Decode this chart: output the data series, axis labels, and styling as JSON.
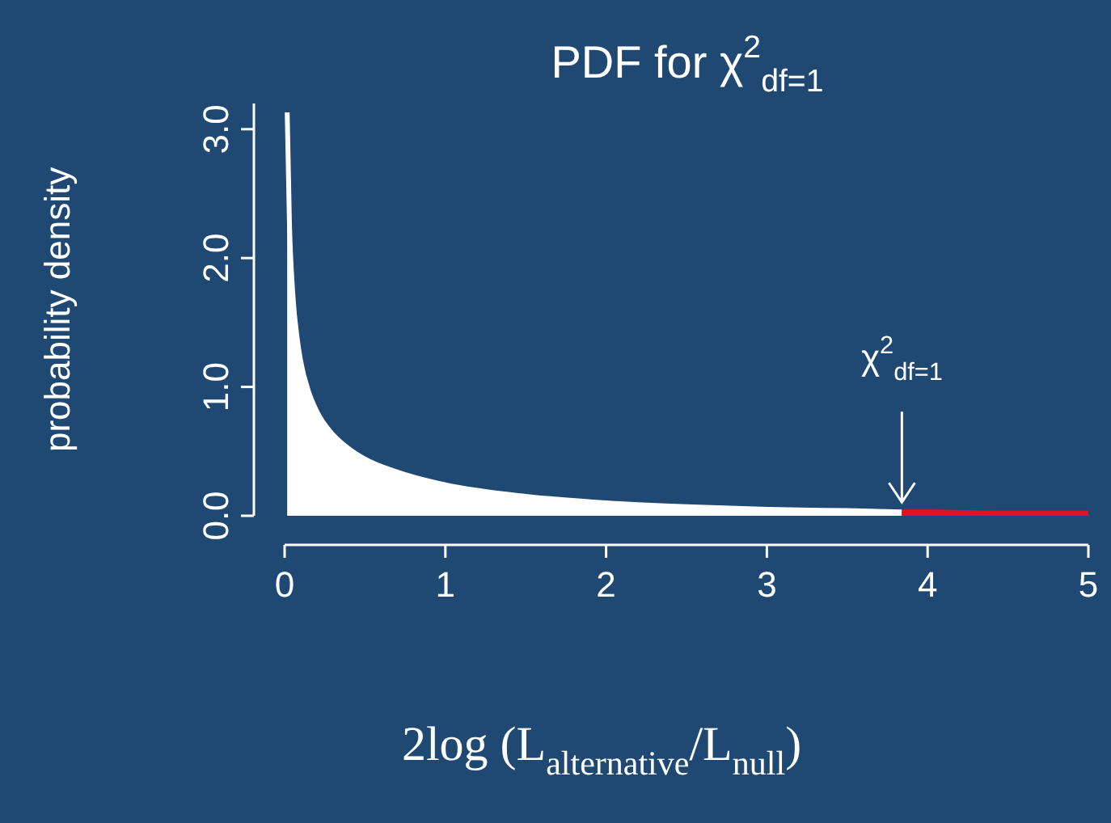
{
  "chart_data": {
    "type": "area",
    "title": "PDF for χ$^{2}$$_{df=1}$",
    "xlabel": "2log (L$_{alternative}$/L$_{null}$)",
    "ylabel": "probability density",
    "annotations": [
      {
        "text": "χ$^{2}$$_{df=1}$",
        "x": 3.84,
        "y": 0.03
      }
    ],
    "xlim": [
      0,
      5
    ],
    "xticks": [
      0,
      1,
      2,
      3,
      4,
      5
    ],
    "ylim": [
      0,
      3.2
    ],
    "yticks": [
      {
        "value": 0,
        "label": "0.0"
      },
      {
        "value": 1,
        "label": "1.0"
      },
      {
        "value": 2,
        "label": "2.0"
      },
      {
        "value": 3,
        "label": "3.0"
      }
    ],
    "grid": false,
    "series": [
      {
        "color": "#ffffff",
        "x": [
          0.016,
          0.03,
          0.05,
          0.08,
          0.1,
          0.15,
          0.2,
          0.3,
          0.4,
          0.5,
          0.7,
          1,
          1.5,
          2,
          2.5,
          3,
          3.5,
          3.84
        ],
        "values": [
          3.13,
          2.27,
          1.74,
          1.36,
          1.2,
          0.96,
          0.81,
          0.63,
          0.52,
          0.44,
          0.34,
          0.24,
          0.15,
          0.1,
          0.07,
          0.05,
          0.04,
          0.03
        ]
      },
      {
        "color": "#e8101a",
        "x": [
          3.84,
          4,
          4.5,
          5
        ],
        "values": [
          0.03,
          0.03,
          0.02,
          0.02
        ]
      }
    ]
  }
}
